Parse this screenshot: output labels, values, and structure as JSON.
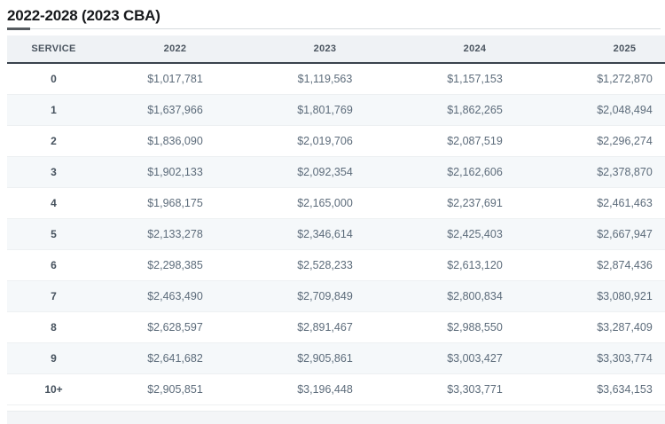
{
  "page": {
    "title": "2022-2028 (2023 CBA)"
  },
  "table": {
    "columns": [
      "SERVICE",
      "2022",
      "2023",
      "2024",
      "2025"
    ],
    "rows": [
      {
        "service": "0",
        "values": [
          "$1,017,781",
          "$1,119,563",
          "$1,157,153",
          "$1,272,870"
        ]
      },
      {
        "service": "1",
        "values": [
          "$1,637,966",
          "$1,801,769",
          "$1,862,265",
          "$2,048,494"
        ]
      },
      {
        "service": "2",
        "values": [
          "$1,836,090",
          "$2,019,706",
          "$2,087,519",
          "$2,296,274"
        ]
      },
      {
        "service": "3",
        "values": [
          "$1,902,133",
          "$2,092,354",
          "$2,162,606",
          "$2,378,870"
        ]
      },
      {
        "service": "4",
        "values": [
          "$1,968,175",
          "$2,165,000",
          "$2,237,691",
          "$2,461,463"
        ]
      },
      {
        "service": "5",
        "values": [
          "$2,133,278",
          "$2,346,614",
          "$2,425,403",
          "$2,667,947"
        ]
      },
      {
        "service": "6",
        "values": [
          "$2,298,385",
          "$2,528,233",
          "$2,613,120",
          "$2,874,436"
        ]
      },
      {
        "service": "7",
        "values": [
          "$2,463,490",
          "$2,709,849",
          "$2,800,834",
          "$3,080,921"
        ]
      },
      {
        "service": "8",
        "values": [
          "$2,628,597",
          "$2,891,467",
          "$2,988,550",
          "$3,287,409"
        ]
      },
      {
        "service": "9",
        "values": [
          "$2,641,682",
          "$2,905,861",
          "$3,003,427",
          "$3,303,774"
        ]
      },
      {
        "service": "10+",
        "values": [
          "$2,905,851",
          "$3,196,448",
          "$3,303,771",
          "$3,634,153"
        ]
      }
    ]
  },
  "colors": {
    "header_background": "#eff2f5",
    "header_border": "#3a434d",
    "striped_row_background": "#f5f8fa",
    "value_text": "#5d6c7b",
    "service_text": "#45515d",
    "title_text": "#17191c"
  }
}
